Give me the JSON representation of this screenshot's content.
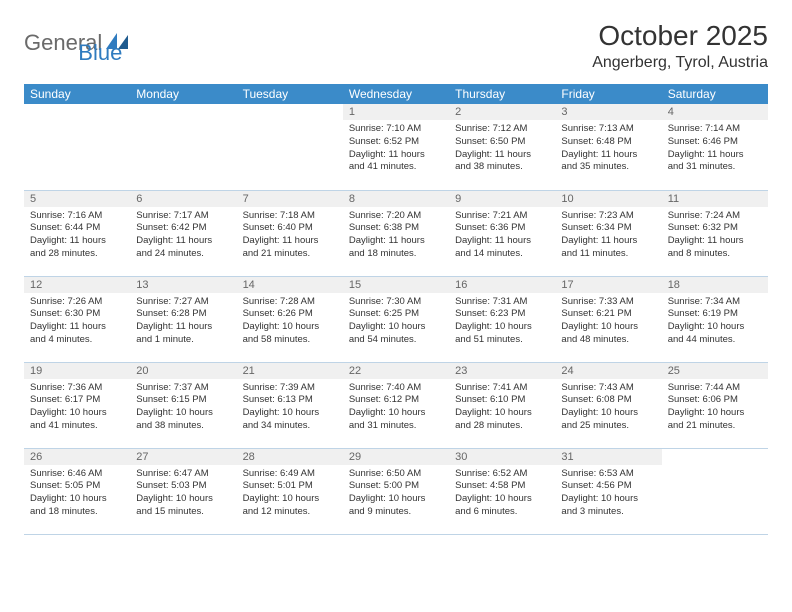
{
  "brand": {
    "general": "General",
    "blue": "Blue"
  },
  "title": "October 2025",
  "location": "Angerberg, Tyrol, Austria",
  "colors": {
    "header_bg": "#3b8bc9",
    "header_fg": "#ffffff",
    "daynum_bg": "#f0f0f0",
    "daynum_fg": "#666666",
    "row_border": "#bfd4e6",
    "logo_gray": "#6a6a6a",
    "logo_blue": "#2f7bbf",
    "text": "#333333",
    "background": "#ffffff"
  },
  "typography": {
    "title_fontsize": 28,
    "location_fontsize": 16,
    "header_fontsize": 12,
    "daynum_fontsize": 11,
    "body_fontsize": 9.5,
    "logo_fontsize": 22
  },
  "dayNames": [
    "Sunday",
    "Monday",
    "Tuesday",
    "Wednesday",
    "Thursday",
    "Friday",
    "Saturday"
  ],
  "weeks": [
    [
      {
        "n": "",
        "lines": [
          "",
          "",
          "",
          ""
        ]
      },
      {
        "n": "",
        "lines": [
          "",
          "",
          "",
          ""
        ]
      },
      {
        "n": "",
        "lines": [
          "",
          "",
          "",
          ""
        ]
      },
      {
        "n": "1",
        "lines": [
          "Sunrise: 7:10 AM",
          "Sunset: 6:52 PM",
          "Daylight: 11 hours",
          "and 41 minutes."
        ]
      },
      {
        "n": "2",
        "lines": [
          "Sunrise: 7:12 AM",
          "Sunset: 6:50 PM",
          "Daylight: 11 hours",
          "and 38 minutes."
        ]
      },
      {
        "n": "3",
        "lines": [
          "Sunrise: 7:13 AM",
          "Sunset: 6:48 PM",
          "Daylight: 11 hours",
          "and 35 minutes."
        ]
      },
      {
        "n": "4",
        "lines": [
          "Sunrise: 7:14 AM",
          "Sunset: 6:46 PM",
          "Daylight: 11 hours",
          "and 31 minutes."
        ]
      }
    ],
    [
      {
        "n": "5",
        "lines": [
          "Sunrise: 7:16 AM",
          "Sunset: 6:44 PM",
          "Daylight: 11 hours",
          "and 28 minutes."
        ]
      },
      {
        "n": "6",
        "lines": [
          "Sunrise: 7:17 AM",
          "Sunset: 6:42 PM",
          "Daylight: 11 hours",
          "and 24 minutes."
        ]
      },
      {
        "n": "7",
        "lines": [
          "Sunrise: 7:18 AM",
          "Sunset: 6:40 PM",
          "Daylight: 11 hours",
          "and 21 minutes."
        ]
      },
      {
        "n": "8",
        "lines": [
          "Sunrise: 7:20 AM",
          "Sunset: 6:38 PM",
          "Daylight: 11 hours",
          "and 18 minutes."
        ]
      },
      {
        "n": "9",
        "lines": [
          "Sunrise: 7:21 AM",
          "Sunset: 6:36 PM",
          "Daylight: 11 hours",
          "and 14 minutes."
        ]
      },
      {
        "n": "10",
        "lines": [
          "Sunrise: 7:23 AM",
          "Sunset: 6:34 PM",
          "Daylight: 11 hours",
          "and 11 minutes."
        ]
      },
      {
        "n": "11",
        "lines": [
          "Sunrise: 7:24 AM",
          "Sunset: 6:32 PM",
          "Daylight: 11 hours",
          "and 8 minutes."
        ]
      }
    ],
    [
      {
        "n": "12",
        "lines": [
          "Sunrise: 7:26 AM",
          "Sunset: 6:30 PM",
          "Daylight: 11 hours",
          "and 4 minutes."
        ]
      },
      {
        "n": "13",
        "lines": [
          "Sunrise: 7:27 AM",
          "Sunset: 6:28 PM",
          "Daylight: 11 hours",
          "and 1 minute."
        ]
      },
      {
        "n": "14",
        "lines": [
          "Sunrise: 7:28 AM",
          "Sunset: 6:26 PM",
          "Daylight: 10 hours",
          "and 58 minutes."
        ]
      },
      {
        "n": "15",
        "lines": [
          "Sunrise: 7:30 AM",
          "Sunset: 6:25 PM",
          "Daylight: 10 hours",
          "and 54 minutes."
        ]
      },
      {
        "n": "16",
        "lines": [
          "Sunrise: 7:31 AM",
          "Sunset: 6:23 PM",
          "Daylight: 10 hours",
          "and 51 minutes."
        ]
      },
      {
        "n": "17",
        "lines": [
          "Sunrise: 7:33 AM",
          "Sunset: 6:21 PM",
          "Daylight: 10 hours",
          "and 48 minutes."
        ]
      },
      {
        "n": "18",
        "lines": [
          "Sunrise: 7:34 AM",
          "Sunset: 6:19 PM",
          "Daylight: 10 hours",
          "and 44 minutes."
        ]
      }
    ],
    [
      {
        "n": "19",
        "lines": [
          "Sunrise: 7:36 AM",
          "Sunset: 6:17 PM",
          "Daylight: 10 hours",
          "and 41 minutes."
        ]
      },
      {
        "n": "20",
        "lines": [
          "Sunrise: 7:37 AM",
          "Sunset: 6:15 PM",
          "Daylight: 10 hours",
          "and 38 minutes."
        ]
      },
      {
        "n": "21",
        "lines": [
          "Sunrise: 7:39 AM",
          "Sunset: 6:13 PM",
          "Daylight: 10 hours",
          "and 34 minutes."
        ]
      },
      {
        "n": "22",
        "lines": [
          "Sunrise: 7:40 AM",
          "Sunset: 6:12 PM",
          "Daylight: 10 hours",
          "and 31 minutes."
        ]
      },
      {
        "n": "23",
        "lines": [
          "Sunrise: 7:41 AM",
          "Sunset: 6:10 PM",
          "Daylight: 10 hours",
          "and 28 minutes."
        ]
      },
      {
        "n": "24",
        "lines": [
          "Sunrise: 7:43 AM",
          "Sunset: 6:08 PM",
          "Daylight: 10 hours",
          "and 25 minutes."
        ]
      },
      {
        "n": "25",
        "lines": [
          "Sunrise: 7:44 AM",
          "Sunset: 6:06 PM",
          "Daylight: 10 hours",
          "and 21 minutes."
        ]
      }
    ],
    [
      {
        "n": "26",
        "lines": [
          "Sunrise: 6:46 AM",
          "Sunset: 5:05 PM",
          "Daylight: 10 hours",
          "and 18 minutes."
        ]
      },
      {
        "n": "27",
        "lines": [
          "Sunrise: 6:47 AM",
          "Sunset: 5:03 PM",
          "Daylight: 10 hours",
          "and 15 minutes."
        ]
      },
      {
        "n": "28",
        "lines": [
          "Sunrise: 6:49 AM",
          "Sunset: 5:01 PM",
          "Daylight: 10 hours",
          "and 12 minutes."
        ]
      },
      {
        "n": "29",
        "lines": [
          "Sunrise: 6:50 AM",
          "Sunset: 5:00 PM",
          "Daylight: 10 hours",
          "and 9 minutes."
        ]
      },
      {
        "n": "30",
        "lines": [
          "Sunrise: 6:52 AM",
          "Sunset: 4:58 PM",
          "Daylight: 10 hours",
          "and 6 minutes."
        ]
      },
      {
        "n": "31",
        "lines": [
          "Sunrise: 6:53 AM",
          "Sunset: 4:56 PM",
          "Daylight: 10 hours",
          "and 3 minutes."
        ]
      },
      {
        "n": "",
        "lines": [
          "",
          "",
          "",
          ""
        ]
      }
    ]
  ]
}
